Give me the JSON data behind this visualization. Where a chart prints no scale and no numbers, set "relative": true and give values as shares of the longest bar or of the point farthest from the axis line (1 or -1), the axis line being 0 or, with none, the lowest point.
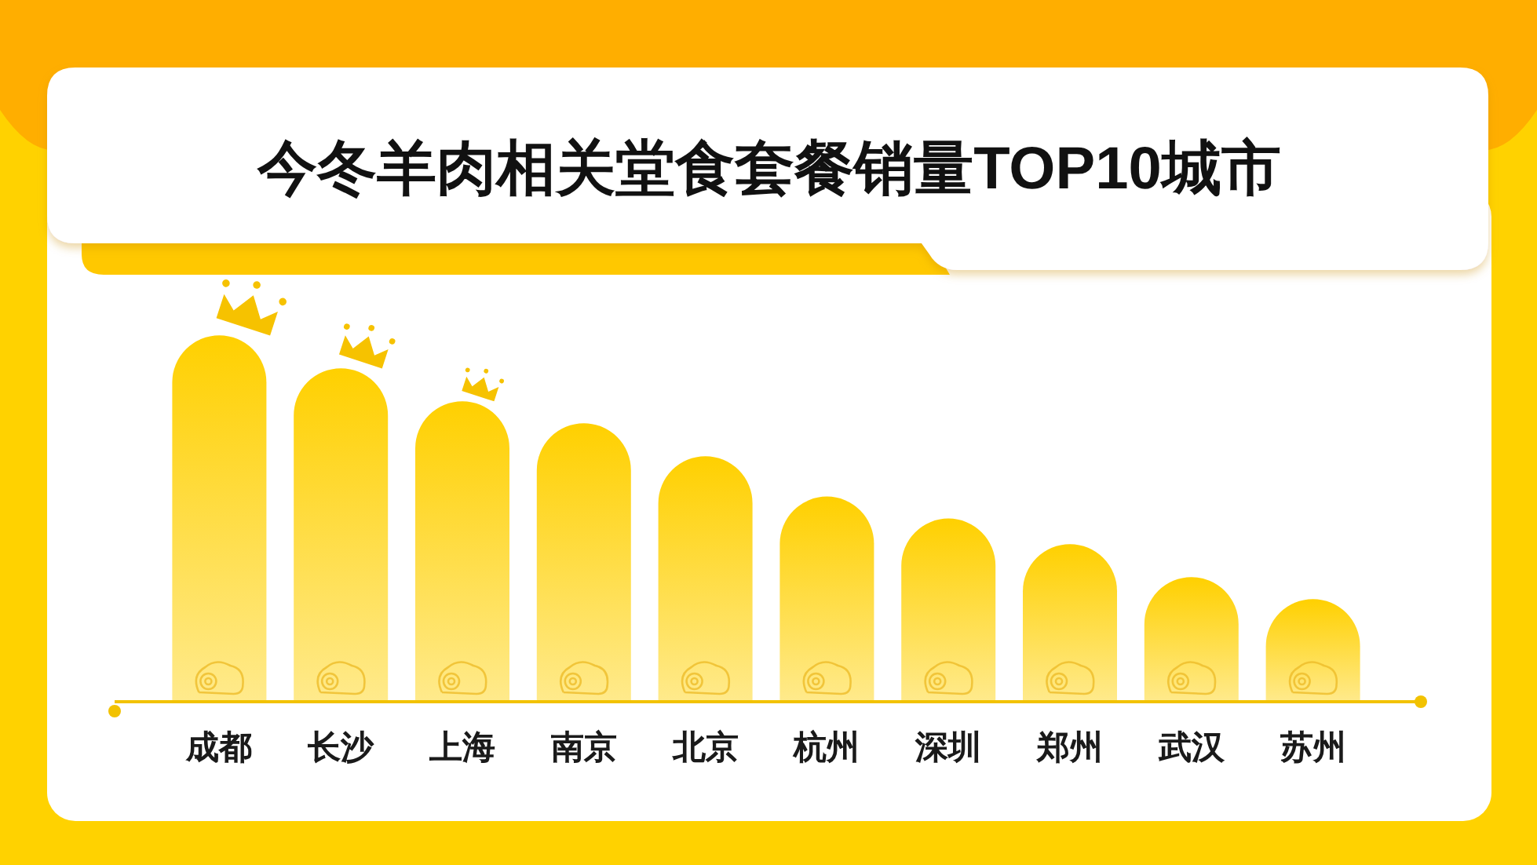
{
  "chart_data": {
    "type": "bar",
    "title": "今冬羊肉相关堂食套餐销量TOP10城市",
    "categories": [
      "成都",
      "长沙",
      "上海",
      "南京",
      "北京",
      "杭州",
      "深圳",
      "郑州",
      "武汉",
      "苏州"
    ],
    "values": [
      1,
      0.91,
      0.82,
      0.76,
      0.67,
      0.56,
      0.5,
      0.43,
      0.34,
      0.28
    ],
    "color": "#ffd000",
    "relative": true
  }
}
